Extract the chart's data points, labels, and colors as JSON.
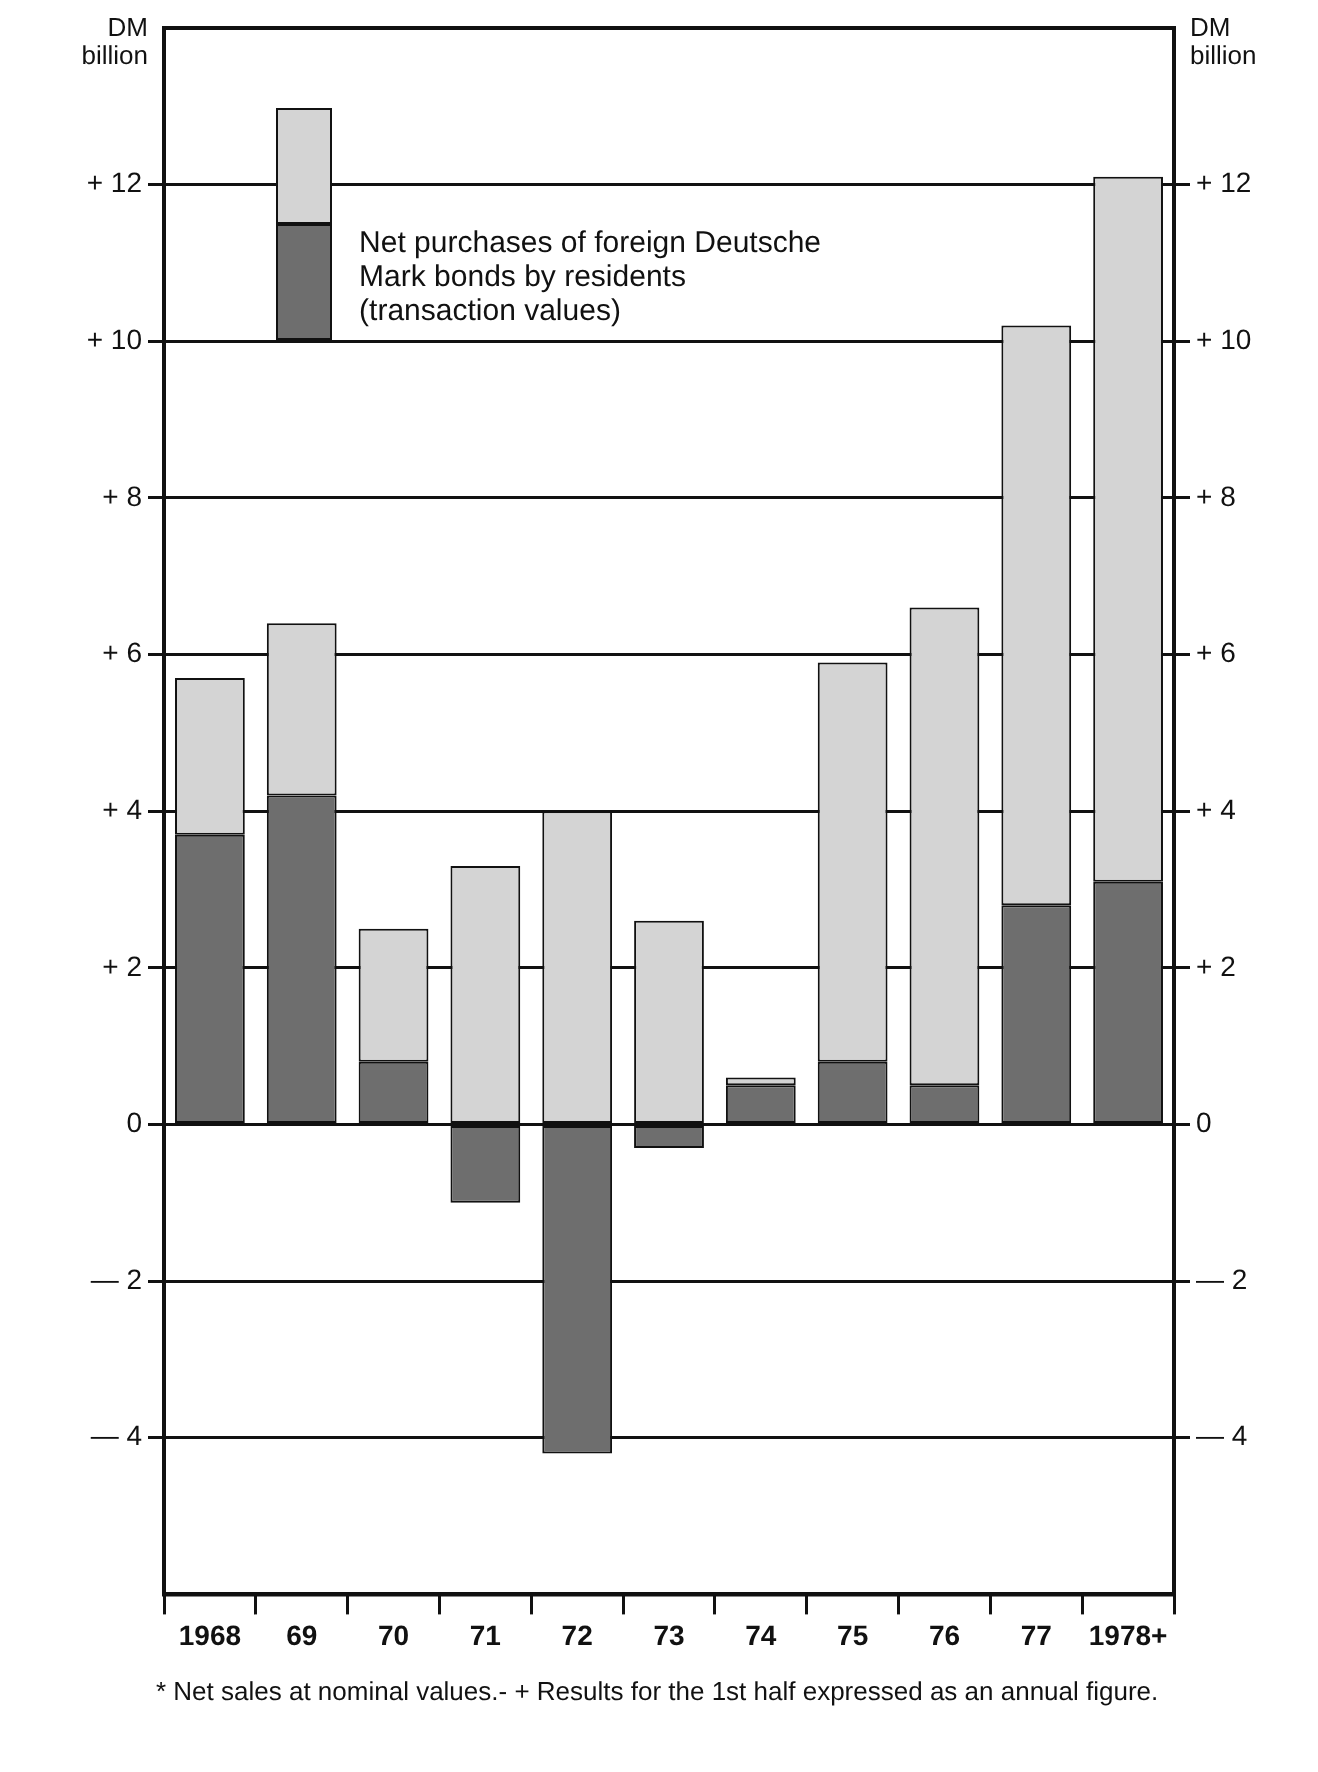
{
  "chart_data": {
    "type": "bar",
    "stacked": true,
    "ylabel": "DM billion",
    "y2label": "DM billion",
    "categories": [
      "1968",
      "69",
      "70",
      "71",
      "72",
      "73",
      "74",
      "75",
      "76",
      "77",
      "1978+"
    ],
    "series": [
      {
        "name": "Net purchases of foreign Deutsche Mark bonds by residents (transaction values)",
        "color": "#6e6e6e",
        "values": [
          3.7,
          4.2,
          0.8,
          -1.0,
          -4.2,
          -0.3,
          0.5,
          0.8,
          0.5,
          2.8,
          3.1
        ]
      },
      {
        "color": "#d4d4d4",
        "values": [
          2.0,
          2.2,
          1.7,
          3.3,
          4.0,
          2.6,
          0.1,
          5.1,
          6.1,
          7.4,
          9.0
        ]
      }
    ],
    "ylim": [
      -6,
      14
    ],
    "yticks": [
      {
        "value": -4,
        "label": "— 4"
      },
      {
        "value": -2,
        "label": "— 2"
      },
      0,
      {
        "value": 2,
        "label": "+ 2"
      },
      {
        "value": 4,
        "label": "+ 4"
      },
      {
        "value": 6,
        "label": "+ 6"
      },
      {
        "value": 8,
        "label": "+ 8"
      },
      {
        "value": 10,
        "label": "+ 10"
      },
      {
        "value": 12,
        "label": "+ 12"
      }
    ],
    "y2lim": [
      -6,
      14
    ],
    "y2ticks": [
      {
        "value": -4,
        "label": "— 4"
      },
      {
        "value": -2,
        "label": "— 2"
      },
      0,
      {
        "value": 2,
        "label": "+ 2"
      },
      {
        "value": 4,
        "label": "+ 4"
      },
      {
        "value": 6,
        "label": "+ 6"
      },
      {
        "value": 8,
        "label": "+ 8"
      },
      {
        "value": 10,
        "label": "+ 10"
      },
      {
        "value": 12,
        "label": "+ 12"
      }
    ],
    "grid": "y",
    "legend": "top left",
    "annotations": [
      "* Net sales at nominal values.- + Results for the 1st half expressed as an annual figure."
    ]
  }
}
